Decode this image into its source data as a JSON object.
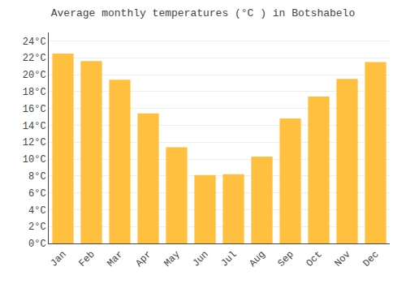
{
  "chart_data": {
    "type": "bar",
    "title": "Average monthly temperatures (°C ) in Botshabelo",
    "categories": [
      "Jan",
      "Feb",
      "Mar",
      "Apr",
      "May",
      "Jun",
      "Jul",
      "Aug",
      "Sep",
      "Oct",
      "Nov",
      "Dec"
    ],
    "values": [
      22.5,
      21.6,
      19.4,
      15.4,
      11.4,
      8.1,
      8.2,
      10.3,
      14.8,
      17.4,
      19.5,
      21.5
    ],
    "color": "#FFC040",
    "ylim": [
      0,
      25
    ],
    "yticks": [
      {
        "value": 0,
        "label": "0°C"
      },
      {
        "value": 2,
        "label": "2°C"
      },
      {
        "value": 4,
        "label": "4°C"
      },
      {
        "value": 6,
        "label": "6°C"
      },
      {
        "value": 8,
        "label": "8°C"
      },
      {
        "value": 10,
        "label": "10°C"
      },
      {
        "value": 12,
        "label": "12°C"
      },
      {
        "value": 14,
        "label": "14°C"
      },
      {
        "value": 16,
        "label": "16°C"
      },
      {
        "value": 18,
        "label": "18°C"
      },
      {
        "value": 20,
        "label": "20°C"
      },
      {
        "value": 22,
        "label": "22°C"
      },
      {
        "value": 24,
        "label": "24°C"
      }
    ],
    "grid": true
  }
}
